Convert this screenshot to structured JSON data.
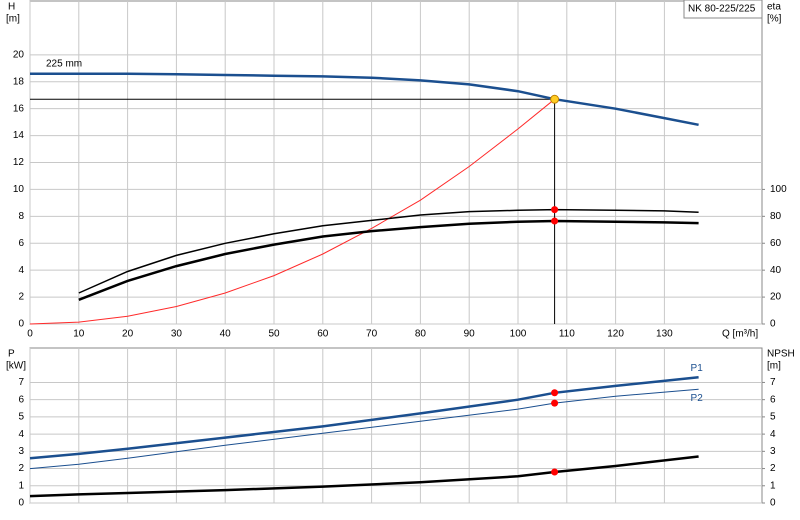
{
  "chart_data": [
    {
      "type": "line",
      "title": "NK 80-225/225",
      "xlabel": "Q [m³/h]",
      "ylabel": "H",
      "yunit": "[m]",
      "y2label": "eta",
      "y2unit": "[%]",
      "xlim": [
        0,
        150
      ],
      "xticks": [
        0,
        10,
        20,
        30,
        40,
        50,
        60,
        70,
        80,
        90,
        100,
        110,
        120,
        130
      ],
      "xticklabels": true,
      "ylim": [
        0,
        24
      ],
      "yticks": [
        0,
        2,
        4,
        6,
        8,
        10,
        12,
        14,
        16,
        18,
        20
      ],
      "y2lim": [
        0,
        240
      ],
      "y2ticks": [
        0,
        20,
        40,
        60,
        80,
        100
      ],
      "grid": true,
      "series": [
        {
          "name": "225 mm",
          "label_pos": "start",
          "color": "#1b4f8f",
          "width": 2.5,
          "x": [
            0,
            10,
            20,
            30,
            40,
            50,
            60,
            70,
            80,
            90,
            100,
            107.5,
            120,
            130,
            137
          ],
          "values": [
            18.6,
            18.6,
            18.6,
            18.55,
            18.5,
            18.45,
            18.4,
            18.3,
            18.1,
            17.8,
            17.3,
            16.7,
            16.0,
            15.3,
            14.8
          ]
        },
        {
          "color": "#ff2a2a",
          "width": 1,
          "x": [
            0,
            10,
            20,
            30,
            40,
            50,
            60,
            70,
            80,
            90,
            100,
            107.5
          ],
          "values": [
            0,
            0.14,
            0.58,
            1.3,
            2.3,
            3.6,
            5.2,
            7.1,
            9.2,
            11.7,
            14.5,
            16.7
          ]
        },
        {
          "color": "#000000",
          "width": 1.5,
          "axis": "y2",
          "marker": 10,
          "marker_color": "#ff0000",
          "x": [
            10,
            20,
            30,
            40,
            50,
            60,
            70,
            80,
            90,
            100,
            107.5,
            120,
            130,
            137
          ],
          "values": [
            23,
            39,
            51,
            60,
            67,
            73,
            77,
            81,
            83.5,
            84.5,
            85,
            84.5,
            84,
            83
          ]
        },
        {
          "color": "#000000",
          "width": 2.5,
          "axis": "y2",
          "marker": 10,
          "marker_color": "#ff0000",
          "x": [
            10,
            20,
            30,
            40,
            50,
            60,
            70,
            80,
            90,
            100,
            107.5,
            120,
            130,
            137
          ],
          "values": [
            18,
            32,
            43,
            52,
            59,
            65,
            69,
            72,
            74.5,
            76,
            76.5,
            76,
            75.5,
            75
          ]
        }
      ],
      "duty_point": {
        "x": 107.5,
        "y": 16.7,
        "color": "#ffcc22"
      }
    },
    {
      "type": "line",
      "ylabel": "P",
      "yunit": "[kW]",
      "y2label": "NPSH",
      "y2unit": "[m]",
      "xlim": [
        0,
        150
      ],
      "xticks": [
        0,
        10,
        20,
        30,
        40,
        50,
        60,
        70,
        80,
        90,
        100,
        110,
        120,
        130
      ],
      "xticklabels": false,
      "ylim": [
        0,
        9
      ],
      "yticks": [
        0,
        1,
        2,
        3,
        4,
        5,
        6,
        7
      ],
      "y2lim": [
        0,
        9
      ],
      "y2ticks": [
        0,
        1,
        2,
        3,
        4,
        5,
        6,
        7
      ],
      "grid": true,
      "series": [
        {
          "name": "P1",
          "label_pos": "end-above",
          "color": "#1b4f8f",
          "width": 2.5,
          "marker": 7,
          "marker_color": "#ff0000",
          "x": [
            0,
            10,
            20,
            40,
            60,
            80,
            100,
            107.5,
            120,
            137
          ],
          "values": [
            2.6,
            2.85,
            3.15,
            3.8,
            4.45,
            5.2,
            6.0,
            6.4,
            6.8,
            7.3
          ]
        },
        {
          "name": "P2",
          "label_pos": "end-below",
          "color": "#1b4f8f",
          "width": 1,
          "marker": 7,
          "marker_color": "#ff0000",
          "x": [
            0,
            10,
            20,
            40,
            60,
            80,
            100,
            107.5,
            120,
            137
          ],
          "values": [
            2.0,
            2.25,
            2.6,
            3.35,
            4.05,
            4.75,
            5.45,
            5.8,
            6.2,
            6.6
          ]
        },
        {
          "color": "#000000",
          "width": 2.5,
          "axis": "y2",
          "marker": 7,
          "marker_color": "#ff0000",
          "x": [
            0,
            10,
            20,
            40,
            60,
            80,
            100,
            107.5,
            120,
            137
          ],
          "values": [
            0.4,
            0.5,
            0.58,
            0.75,
            0.95,
            1.2,
            1.55,
            1.8,
            2.15,
            2.7
          ]
        }
      ]
    }
  ]
}
